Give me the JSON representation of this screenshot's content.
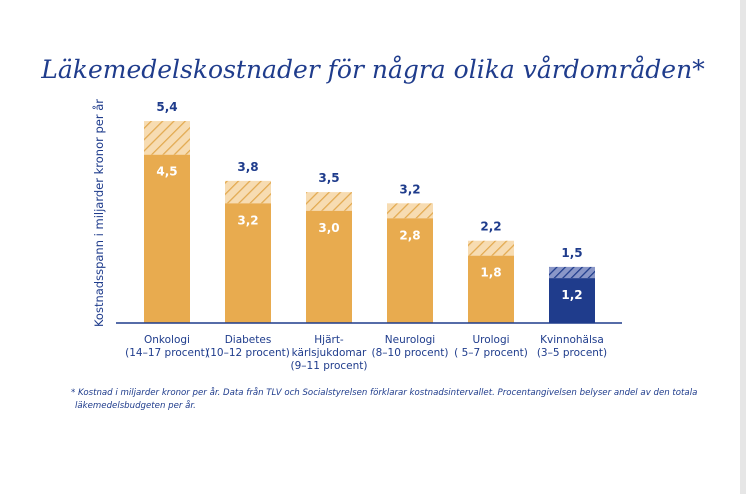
{
  "chart_data": {
    "type": "bar",
    "title": "Läkemedelskostnader för några olika vårdområden*",
    "ylabel": "Kostnadsspann i miljarder kronor per år",
    "xlabel": "",
    "ylim": [
      0,
      6.3
    ],
    "grid": false,
    "categories": [
      [
        "Onkologi",
        "(14–17 procent)"
      ],
      [
        "Diabetes",
        "(10–12 procent)"
      ],
      [
        "Hjärt-",
        "kärlsjukdomar",
        "(9–11 procent)"
      ],
      [
        "Neurologi",
        "(8–10 procent)"
      ],
      [
        "Urologi",
        "( 5–7 procent)"
      ],
      [
        "Kvinnohälsa",
        "(3–5 procent)"
      ]
    ],
    "low_values": [
      4.5,
      3.2,
      3.0,
      2.8,
      1.8,
      1.2
    ],
    "high_values": [
      5.4,
      3.8,
      3.5,
      3.2,
      2.2,
      1.5
    ],
    "low_labels": [
      "4,5",
      "3,2",
      "3,0",
      "2,8",
      "1,8",
      "1,2"
    ],
    "high_labels": [
      "5,4",
      "3,8",
      "3,5",
      "3,2",
      "2,2",
      "1,5"
    ],
    "colors": {
      "solid": "#e8ab4f",
      "solid_highlight": "#1f3c8c",
      "hatch_bg": "#f7dcb2",
      "hatch_line": "#e2a94f",
      "hatch_bg_highlight": "#8a97c8",
      "hatch_line_highlight": "#1f3c8c",
      "text": "#1f3c8c",
      "axis": "#1f3c8c"
    },
    "highlight_index": 5
  },
  "footnote": {
    "line1": "* Kostnad i miljarder kronor per år. Data från TLV och Socialstyrelsen förklarar kostnadsintervallet. Procentangivelsen belyser andel av den totala",
    "line2": "läkemedelsbudgeten per år."
  }
}
